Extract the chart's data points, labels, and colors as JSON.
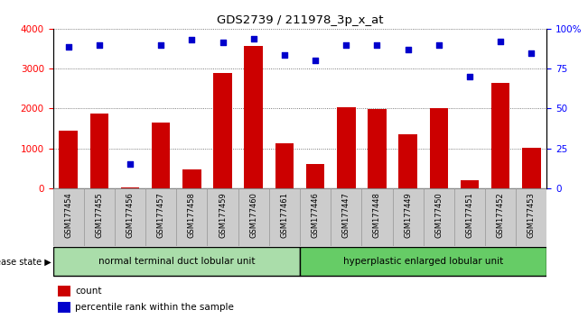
{
  "title": "GDS2739 / 211978_3p_x_at",
  "samples": [
    "GSM177454",
    "GSM177455",
    "GSM177456",
    "GSM177457",
    "GSM177458",
    "GSM177459",
    "GSM177460",
    "GSM177461",
    "GSM177446",
    "GSM177447",
    "GSM177448",
    "GSM177449",
    "GSM177450",
    "GSM177451",
    "GSM177452",
    "GSM177453"
  ],
  "counts": [
    1450,
    1880,
    30,
    1650,
    470,
    2880,
    3570,
    1130,
    610,
    2020,
    1980,
    1350,
    2010,
    210,
    2640,
    1010
  ],
  "percentile_values": [
    3550,
    3600,
    600,
    3600,
    3720,
    3650,
    3740,
    3340,
    3200,
    3590,
    3600,
    3480,
    3600,
    2790,
    3680,
    3380
  ],
  "group1_label": "normal terminal duct lobular unit",
  "group2_label": "hyperplastic enlarged lobular unit",
  "group1_count": 8,
  "group2_count": 8,
  "disease_state_label": "disease state",
  "bar_color": "#cc0000",
  "dot_color": "#0000cc",
  "ylim_left": [
    0,
    4000
  ],
  "ylim_right": [
    0,
    100
  ],
  "yticks_left": [
    0,
    1000,
    2000,
    3000,
    4000
  ],
  "yticks_right": [
    0,
    25,
    50,
    75,
    100
  ],
  "ytick_labels_right": [
    "0",
    "25",
    "50",
    "75",
    "100%"
  ],
  "tick_bg": "#cccccc",
  "group1_color": "#aaddaa",
  "group2_color": "#66cc66",
  "legend_count_label": "count",
  "legend_pct_label": "percentile rank within the sample",
  "bg_color": "#ffffff"
}
